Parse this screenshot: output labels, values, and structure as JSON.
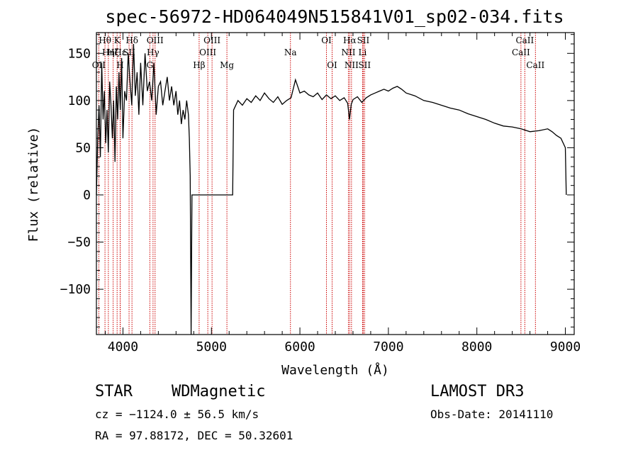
{
  "chart_data": {
    "type": "line",
    "title": "spec-56972-HD064049N515841V01_sp02-034.fits",
    "xlabel": "Wavelength (Å)",
    "ylabel": "Flux (relative)",
    "xlim": [
      3700,
      9100
    ],
    "ylim": [
      -148,
      172
    ],
    "x_ticks": [
      4000,
      5000,
      6000,
      7000,
      8000,
      9000
    ],
    "x_tick_labels": [
      "4000",
      "5000",
      "6000",
      "7000",
      "8000",
      "9000"
    ],
    "y_ticks": [
      -100,
      -50,
      0,
      50,
      100,
      150
    ],
    "y_tick_labels": [
      "−100",
      "−50",
      "0",
      "50",
      "100",
      "150"
    ],
    "series": [
      {
        "name": "flux",
        "x": [
          3700,
          3715,
          3730,
          3745,
          3760,
          3775,
          3790,
          3805,
          3820,
          3835,
          3850,
          3865,
          3880,
          3895,
          3910,
          3925,
          3940,
          3955,
          3970,
          3985,
          4000,
          4020,
          4040,
          4060,
          4080,
          4100,
          4120,
          4140,
          4160,
          4180,
          4200,
          4225,
          4250,
          4275,
          4300,
          4325,
          4350,
          4375,
          4400,
          4425,
          4450,
          4475,
          4500,
          4525,
          4550,
          4575,
          4600,
          4620,
          4640,
          4660,
          4680,
          4700,
          4720,
          4740,
          4750,
          4760,
          4770,
          4780,
          4800,
          4900,
          5000,
          5100,
          5200,
          5240,
          5250,
          5300,
          5350,
          5400,
          5450,
          5500,
          5550,
          5600,
          5650,
          5700,
          5750,
          5800,
          5850,
          5900,
          5950,
          6000,
          6050,
          6100,
          6150,
          6200,
          6250,
          6300,
          6350,
          6400,
          6450,
          6500,
          6540,
          6560,
          6580,
          6600,
          6650,
          6700,
          6750,
          6800,
          6850,
          6900,
          6950,
          7000,
          7050,
          7100,
          7150,
          7200,
          7300,
          7400,
          7500,
          7600,
          7700,
          7800,
          7900,
          8000,
          8100,
          8200,
          8300,
          8400,
          8500,
          8600,
          8700,
          8800,
          8850,
          8900,
          8950,
          9000,
          9010
        ],
        "values": [
          0,
          60,
          95,
          40,
          140,
          80,
          110,
          55,
          90,
          45,
          120,
          95,
          60,
          100,
          35,
          115,
          80,
          130,
          90,
          145,
          60,
          110,
          100,
          150,
          120,
          95,
          160,
          105,
          130,
          85,
          140,
          95,
          150,
          110,
          120,
          100,
          140,
          85,
          115,
          120,
          95,
          110,
          125,
          100,
          115,
          95,
          110,
          85,
          100,
          75,
          90,
          80,
          100,
          85,
          60,
          20,
          -148,
          0,
          0,
          0,
          0,
          0,
          0,
          0,
          90,
          100,
          95,
          102,
          98,
          105,
          100,
          108,
          102,
          98,
          104,
          96,
          100,
          103,
          122,
          108,
          110,
          106,
          104,
          108,
          101,
          106,
          102,
          105,
          100,
          103,
          97,
          80,
          96,
          101,
          104,
          98,
          103,
          106,
          108,
          110,
          112,
          110,
          113,
          115,
          112,
          108,
          105,
          100,
          98,
          95,
          92,
          90,
          86,
          83,
          80,
          76,
          73,
          72,
          70,
          67,
          68,
          70,
          67,
          63,
          60,
          50,
          0
        ]
      }
    ],
    "spectral_lines": [
      {
        "label": "Hθ",
        "x": 3797,
        "row": 1
      },
      {
        "label": "Hη",
        "x": 3835,
        "row": 2
      },
      {
        "label": "OII",
        "x": 3727,
        "row": 3
      },
      {
        "label": "Hζ",
        "x": 3889,
        "row": 2
      },
      {
        "label": "K",
        "x": 3934,
        "row": 1
      },
      {
        "label": "H",
        "x": 3968,
        "row": 3
      },
      {
        "label": "Hε",
        "x": 3970,
        "row": 2
      },
      {
        "label": "SII",
        "x": 4069,
        "row": 2
      },
      {
        "label": "Hδ",
        "x": 4102,
        "row": 1
      },
      {
        "label": "G",
        "x": 4304,
        "row": 3
      },
      {
        "label": "Hγ",
        "x": 4340,
        "row": 2
      },
      {
        "label": "OIII",
        "x": 4363,
        "row": 1
      },
      {
        "label": "Hβ",
        "x": 4861,
        "row": 3
      },
      {
        "label": "OIII",
        "x": 4959,
        "row": 2
      },
      {
        "label": "OIII",
        "x": 5007,
        "row": 1
      },
      {
        "label": "Mg",
        "x": 5175,
        "row": 3
      },
      {
        "label": "Na",
        "x": 5893,
        "row": 2
      },
      {
        "label": "OI",
        "x": 6300,
        "row": 1
      },
      {
        "label": "OI",
        "x": 6364,
        "row": 3
      },
      {
        "label": "NII",
        "x": 6548,
        "row": 2
      },
      {
        "label": "Hα",
        "x": 6563,
        "row": 1
      },
      {
        "label": "NII",
        "x": 6583,
        "row": 3
      },
      {
        "label": "Li",
        "x": 6708,
        "row": 2
      },
      {
        "label": "SII",
        "x": 6716,
        "row": 1
      },
      {
        "label": "SII",
        "x": 6731,
        "row": 3
      },
      {
        "label": "CaII",
        "x": 8498,
        "row": 2
      },
      {
        "label": "CaII",
        "x": 8542,
        "row": 1
      },
      {
        "label": "CaII",
        "x": 8662,
        "row": 3
      }
    ]
  },
  "info": {
    "class_label": "STAR",
    "subclass_label": "WDMagnetic",
    "survey": "LAMOST DR3",
    "cz_line": "cz = −1124.0 ± 56.5 km/s",
    "obs_date_line": "Obs-Date: 20141110",
    "coords_line": "RA =  97.88172, DEC =  50.32601"
  },
  "colors": {
    "line_marker": "#cc0000",
    "spectrum": "#000000",
    "axes": "#000000"
  }
}
